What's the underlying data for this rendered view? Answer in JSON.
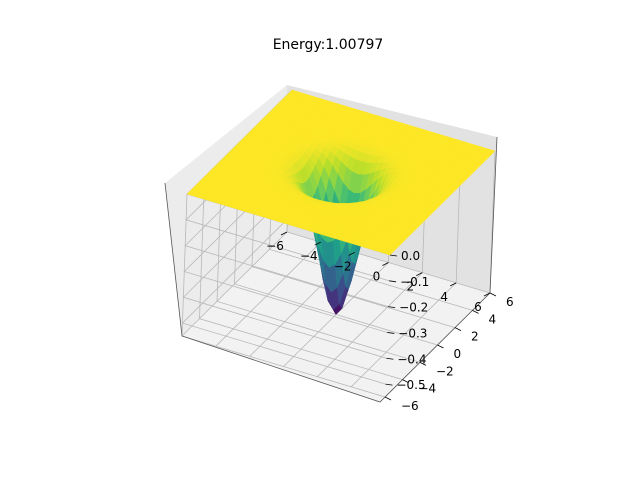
{
  "chart_data": {
    "type": "surface3d",
    "title": "Energy:1.00797",
    "xlabel": "",
    "ylabel": "",
    "zlabel": "",
    "colormap": "viridis",
    "x_ticks": [
      -6,
      -4,
      -2,
      0,
      2,
      4,
      6
    ],
    "y_ticks": [
      -6,
      -4,
      -2,
      0,
      2,
      4,
      6
    ],
    "z_ticks": [
      0.0,
      -0.1,
      -0.2,
      -0.3,
      -0.4,
      -0.5
    ],
    "z_tick_labels": [
      "0.0",
      "−0.1",
      "−0.2",
      "−0.3",
      "−0.4",
      "−0.5"
    ],
    "x_tick_labels": [
      "−6",
      "−4",
      "−2",
      "0",
      "2",
      "4",
      "6"
    ],
    "y_tick_labels": [
      "−6",
      "−4",
      "−2",
      "0",
      "2",
      "4",
      "6"
    ],
    "xlim": [
      -6,
      6
    ],
    "ylim": [
      -6,
      6
    ],
    "zlim": [
      -0.55,
      0.0
    ],
    "surface": {
      "function": "z = -0.55 * exp(-(x^2 + y^2) / 2)",
      "min_z": -0.55,
      "max_z": 0.0
    },
    "grid": true
  }
}
